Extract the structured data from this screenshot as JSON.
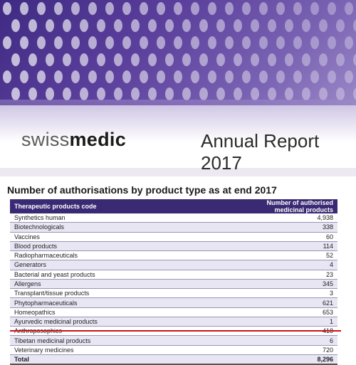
{
  "banner": {
    "logo_part1": "swiss",
    "logo_part2": "medic",
    "report_title": "Annual Report 2017"
  },
  "table_title": "Number of authorisations by product type as at end 2017",
  "table": {
    "headers": [
      "Therapeutic products code",
      "Number of authorised medicinal products"
    ],
    "rows": [
      {
        "name": "Synthetics human",
        "value": "4,938"
      },
      {
        "name": "Biotechnologicals",
        "value": "338"
      },
      {
        "name": "Vaccines",
        "value": "60"
      },
      {
        "name": "Blood products",
        "value": "114"
      },
      {
        "name": "Radiopharmaceuticals",
        "value": "52"
      },
      {
        "name": "Generators",
        "value": "4"
      },
      {
        "name": "Bacterial and yeast products",
        "value": "23"
      },
      {
        "name": "Allergens",
        "value": "345"
      },
      {
        "name": "Transplant/tissue products",
        "value": "3"
      },
      {
        "name": "Phytopharmaceuticals",
        "value": "621"
      },
      {
        "name": "Homeopathics",
        "value": "653"
      },
      {
        "name": "Ayurvedic medicinal products",
        "value": "1"
      },
      {
        "name": "Anthroposophics",
        "value": "418"
      },
      {
        "name": "Tibetan medicinal products",
        "value": "6"
      },
      {
        "name": "Veterinary medicines",
        "value": "720"
      }
    ],
    "total": {
      "name": "Total",
      "value": "8,296"
    }
  },
  "colors": {
    "header_bg": "#3a2a74",
    "highlight_line": "#d0101a",
    "banner_purple": "#5b3f9c"
  }
}
